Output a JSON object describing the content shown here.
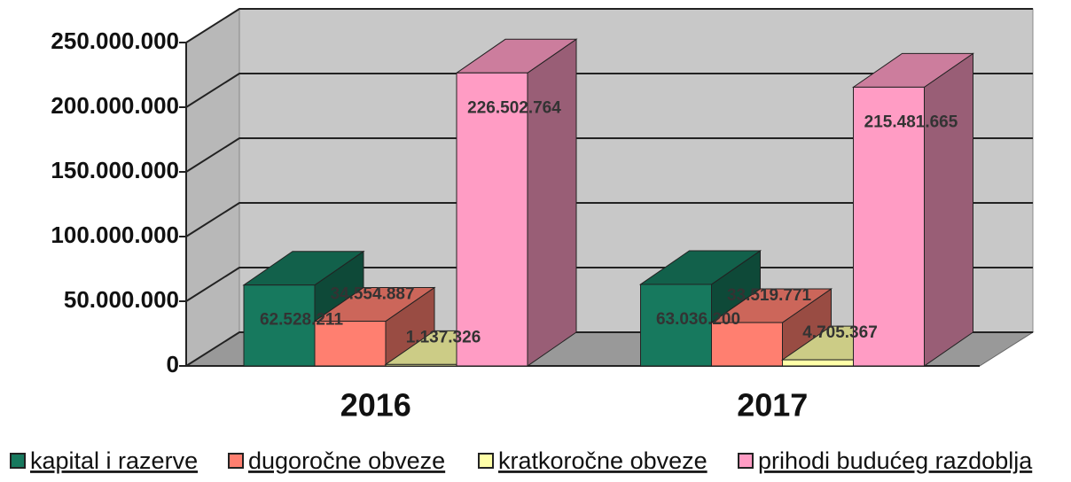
{
  "chart_data": {
    "type": "bar3d",
    "categories": [
      "2016",
      "2017"
    ],
    "series": [
      {
        "name": "kapital i razerve",
        "color": "#17795e",
        "values": [
          62528211,
          63036200
        ],
        "value_labels": [
          "62.528.211",
          "63.036.200"
        ]
      },
      {
        "name": "dugoročne obveze",
        "color": "#ff7f70",
        "values": [
          34554887,
          33519771
        ],
        "value_labels": [
          "34.554.887",
          "33.519.771"
        ]
      },
      {
        "name": "kratkoročne obveze",
        "color": "#ffffa8",
        "values": [
          1137326,
          4705367
        ],
        "value_labels": [
          "1.137.326",
          "4.705.367"
        ]
      },
      {
        "name": "prihodi budućeg razdoblja",
        "color": "#ff9cc4",
        "values": [
          226502764,
          215481665
        ],
        "value_labels": [
          "226.502.764",
          "215.481.665"
        ]
      }
    ],
    "ylim": [
      0,
      250000000
    ],
    "yticks": [
      {
        "value": 0,
        "label": "0"
      },
      {
        "value": 50000000,
        "label": "50.000.000"
      },
      {
        "value": 100000000,
        "label": "100.000.000"
      },
      {
        "value": 150000000,
        "label": "150.000.000"
      },
      {
        "value": 200000000,
        "label": "200.000.000"
      },
      {
        "value": 250000000,
        "label": "250.000.000"
      }
    ],
    "grid": true,
    "legend": "bottom"
  }
}
